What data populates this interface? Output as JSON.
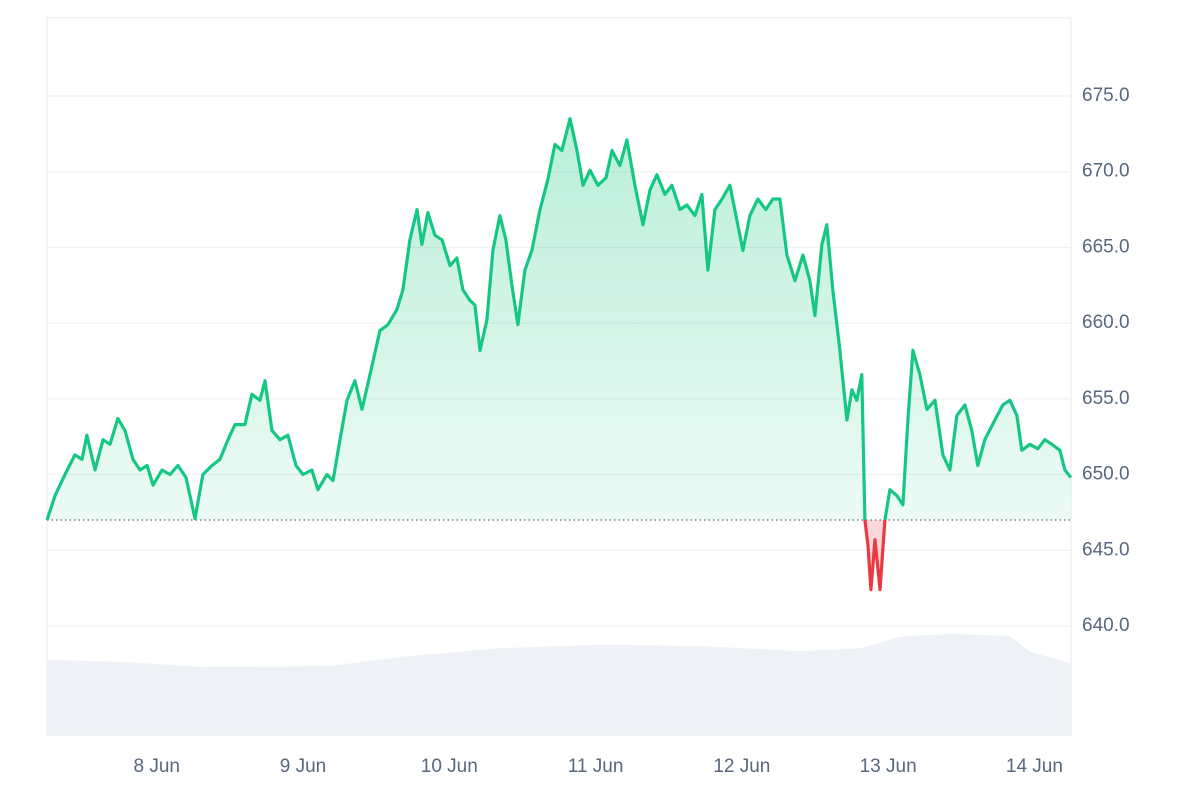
{
  "chart_data": {
    "type": "line",
    "xlim": [
      7.25,
      14.25
    ],
    "xticks": [
      {
        "value": 8,
        "label": "8 Jun"
      },
      {
        "value": 9,
        "label": "9 Jun"
      },
      {
        "value": 10,
        "label": "10 Jun"
      },
      {
        "value": 11,
        "label": "11 Jun"
      },
      {
        "value": 12,
        "label": "12 Jun"
      },
      {
        "value": 13,
        "label": "13 Jun"
      },
      {
        "value": 14,
        "label": "14 Jun"
      }
    ],
    "ylim": [
      632.8,
      680.15
    ],
    "yticks": [
      {
        "value": 640,
        "label": "640.0"
      },
      {
        "value": 645,
        "label": "645.0"
      },
      {
        "value": 650,
        "label": "650.0"
      },
      {
        "value": 655,
        "label": "655.0"
      },
      {
        "value": 660,
        "label": "660.0"
      },
      {
        "value": 665,
        "label": "665.0"
      },
      {
        "value": 670,
        "label": "670.0"
      },
      {
        "value": 675,
        "label": "675.0"
      }
    ],
    "grid": true,
    "baseline": 647,
    "color_up": "#16c784",
    "color_down": "#ea3943",
    "series": [
      {
        "color": "#16c784",
        "x": [
          7.25,
          7.305,
          7.373,
          7.441,
          7.489,
          7.523,
          7.578,
          7.633,
          7.681,
          7.735,
          7.783,
          7.838,
          7.886,
          7.934,
          7.975,
          8.036,
          8.091,
          8.145,
          8.2,
          8.262,
          8.316,
          8.378,
          8.432,
          8.487,
          8.535,
          8.603,
          8.651,
          8.706,
          8.74,
          8.788,
          8.843,
          8.897,
          8.952,
          9.0,
          9.061,
          9.102,
          9.164,
          9.205,
          9.253,
          9.301,
          9.355,
          9.403,
          9.458,
          9.526,
          9.581,
          9.642,
          9.683,
          9.731,
          9.779,
          9.813,
          9.854,
          9.902,
          9.95,
          10.005,
          10.052,
          10.093,
          10.141,
          10.175,
          10.21,
          10.257,
          10.298,
          10.346,
          10.387,
          10.428,
          10.469,
          10.517,
          10.565,
          10.62,
          10.674,
          10.722,
          10.77,
          10.825,
          10.873,
          10.914,
          10.962,
          11.016,
          11.071,
          11.112,
          11.166,
          11.214,
          11.269,
          11.324,
          11.372,
          11.419,
          11.474,
          11.522,
          11.577,
          11.624,
          11.679,
          11.727,
          11.768,
          11.816,
          11.864,
          11.918,
          11.966,
          12.007,
          12.055,
          12.11,
          12.164,
          12.212,
          12.26,
          12.308,
          12.363,
          12.417,
          12.465,
          12.499,
          12.547,
          12.581,
          12.622,
          12.67,
          12.718,
          12.752,
          12.786,
          12.82,
          12.841,
          12.862,
          12.882,
          12.91,
          12.944,
          12.978,
          13.012,
          13.06,
          13.101,
          13.135,
          13.169,
          13.217,
          13.265,
          13.32,
          13.374,
          13.422,
          13.47,
          13.525,
          13.572,
          13.613,
          13.661,
          13.73,
          13.784,
          13.832,
          13.88,
          13.914,
          13.969,
          14.023,
          14.071,
          14.119,
          14.174,
          14.208,
          14.25
        ],
        "values": [
          647.0,
          648.6,
          650.0,
          651.3,
          651.0,
          652.6,
          650.3,
          652.3,
          652.0,
          653.7,
          652.9,
          651.0,
          650.3,
          650.6,
          649.3,
          650.3,
          650.0,
          650.6,
          649.8,
          647.1,
          650.0,
          650.6,
          651.0,
          652.3,
          653.3,
          653.3,
          655.3,
          654.9,
          656.2,
          652.9,
          652.3,
          652.6,
          650.6,
          650.0,
          650.3,
          649.0,
          650.0,
          649.6,
          652.3,
          654.9,
          656.2,
          654.3,
          656.6,
          659.5,
          659.9,
          660.9,
          662.2,
          665.5,
          667.5,
          665.2,
          667.3,
          665.8,
          665.5,
          663.8,
          664.3,
          662.2,
          661.5,
          661.2,
          658.2,
          660.2,
          664.8,
          667.1,
          665.5,
          662.5,
          659.9,
          663.5,
          664.8,
          667.5,
          669.5,
          671.8,
          671.4,
          673.5,
          671.4,
          669.1,
          670.1,
          669.1,
          669.6,
          671.4,
          670.4,
          672.1,
          669.1,
          666.5,
          668.8,
          669.8,
          668.5,
          669.1,
          667.5,
          667.8,
          667.1,
          668.5,
          663.5,
          667.5,
          668.2,
          669.1,
          666.8,
          664.8,
          667.1,
          668.2,
          667.5,
          668.2,
          668.2,
          664.5,
          662.8,
          664.5,
          662.8,
          660.5,
          665.2,
          666.5,
          662.2,
          658.2,
          653.6,
          655.6,
          654.9,
          656.6,
          647.0,
          645.3,
          642.4,
          645.7,
          642.4,
          647.0,
          649.0,
          648.6,
          648.0,
          653.6,
          658.2,
          656.6,
          654.3,
          654.9,
          651.3,
          650.3,
          653.9,
          654.6,
          652.9,
          650.6,
          652.3,
          653.6,
          654.6,
          654.9,
          653.9,
          651.6,
          652.0,
          651.7,
          652.3,
          652.0,
          651.6,
          650.3,
          649.8
        ]
      }
    ],
    "volume": {
      "color": "#eef1f5",
      "axis": "y2",
      "x": [
        7.25,
        7.749,
        8.296,
        9.184,
        9.663,
        10.346,
        11.03,
        11.713,
        12.397,
        12.807,
        13.081,
        13.422,
        13.832,
        13.969,
        14.25
      ],
      "values": [
        10.5,
        10.2,
        9.5,
        9.6,
        10.9,
        12.1,
        12.6,
        12.4,
        11.7,
        12.1,
        13.7,
        14.1,
        13.8,
        11.6,
        10.0
      ]
    },
    "y2lim": [
      0,
      100
    ]
  }
}
